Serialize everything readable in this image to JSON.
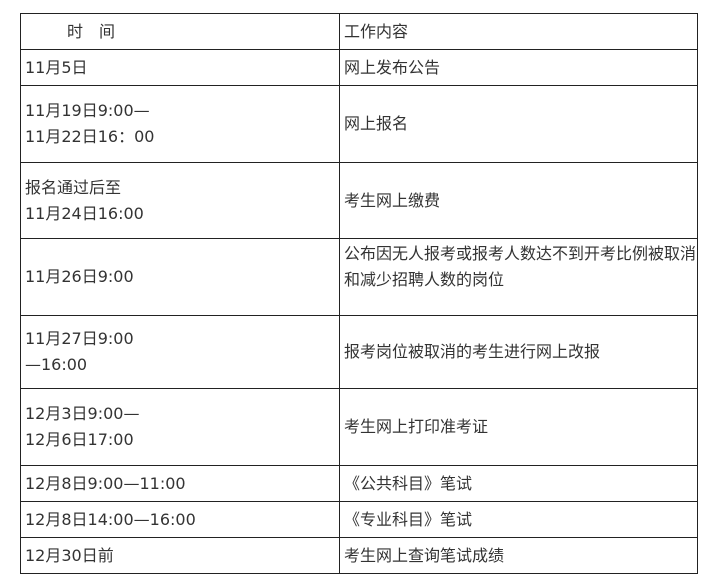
{
  "header": {
    "time": "时　间",
    "content": "工作内容"
  },
  "rows": [
    {
      "time": [
        "11月5日"
      ],
      "content": [
        "网上发布公告"
      ]
    },
    {
      "time": [
        "11月19日9:00—",
        "11月22日16：00"
      ],
      "content": [
        "网上报名"
      ]
    },
    {
      "time": [
        "报名通过后至",
        "11月24日16:00"
      ],
      "content": [
        "考生网上缴费"
      ]
    },
    {
      "time": [
        "11月26日9:00"
      ],
      "content": [
        "公布因无人报考或报考人数达不到开考比例被取消",
        "和减少招聘人数的岗位"
      ]
    },
    {
      "time": [
        "11月27日9:00",
        "—16:00"
      ],
      "content": [
        "报考岗位被取消的考生进行网上改报"
      ]
    },
    {
      "time": [
        "12月3日9:00—",
        "12月6日17:00"
      ],
      "content": [
        "考生网上打印准考证"
      ]
    },
    {
      "time": [
        "12月8日9:00—11:00"
      ],
      "content": [
        "《公共科目》笔试"
      ]
    },
    {
      "time": [
        "12月8日14:00—16:00"
      ],
      "content": [
        "《专业科目》笔试"
      ]
    },
    {
      "time": [
        "12月30日前"
      ],
      "content": [
        "考生网上查询笔试成绩"
      ]
    }
  ]
}
